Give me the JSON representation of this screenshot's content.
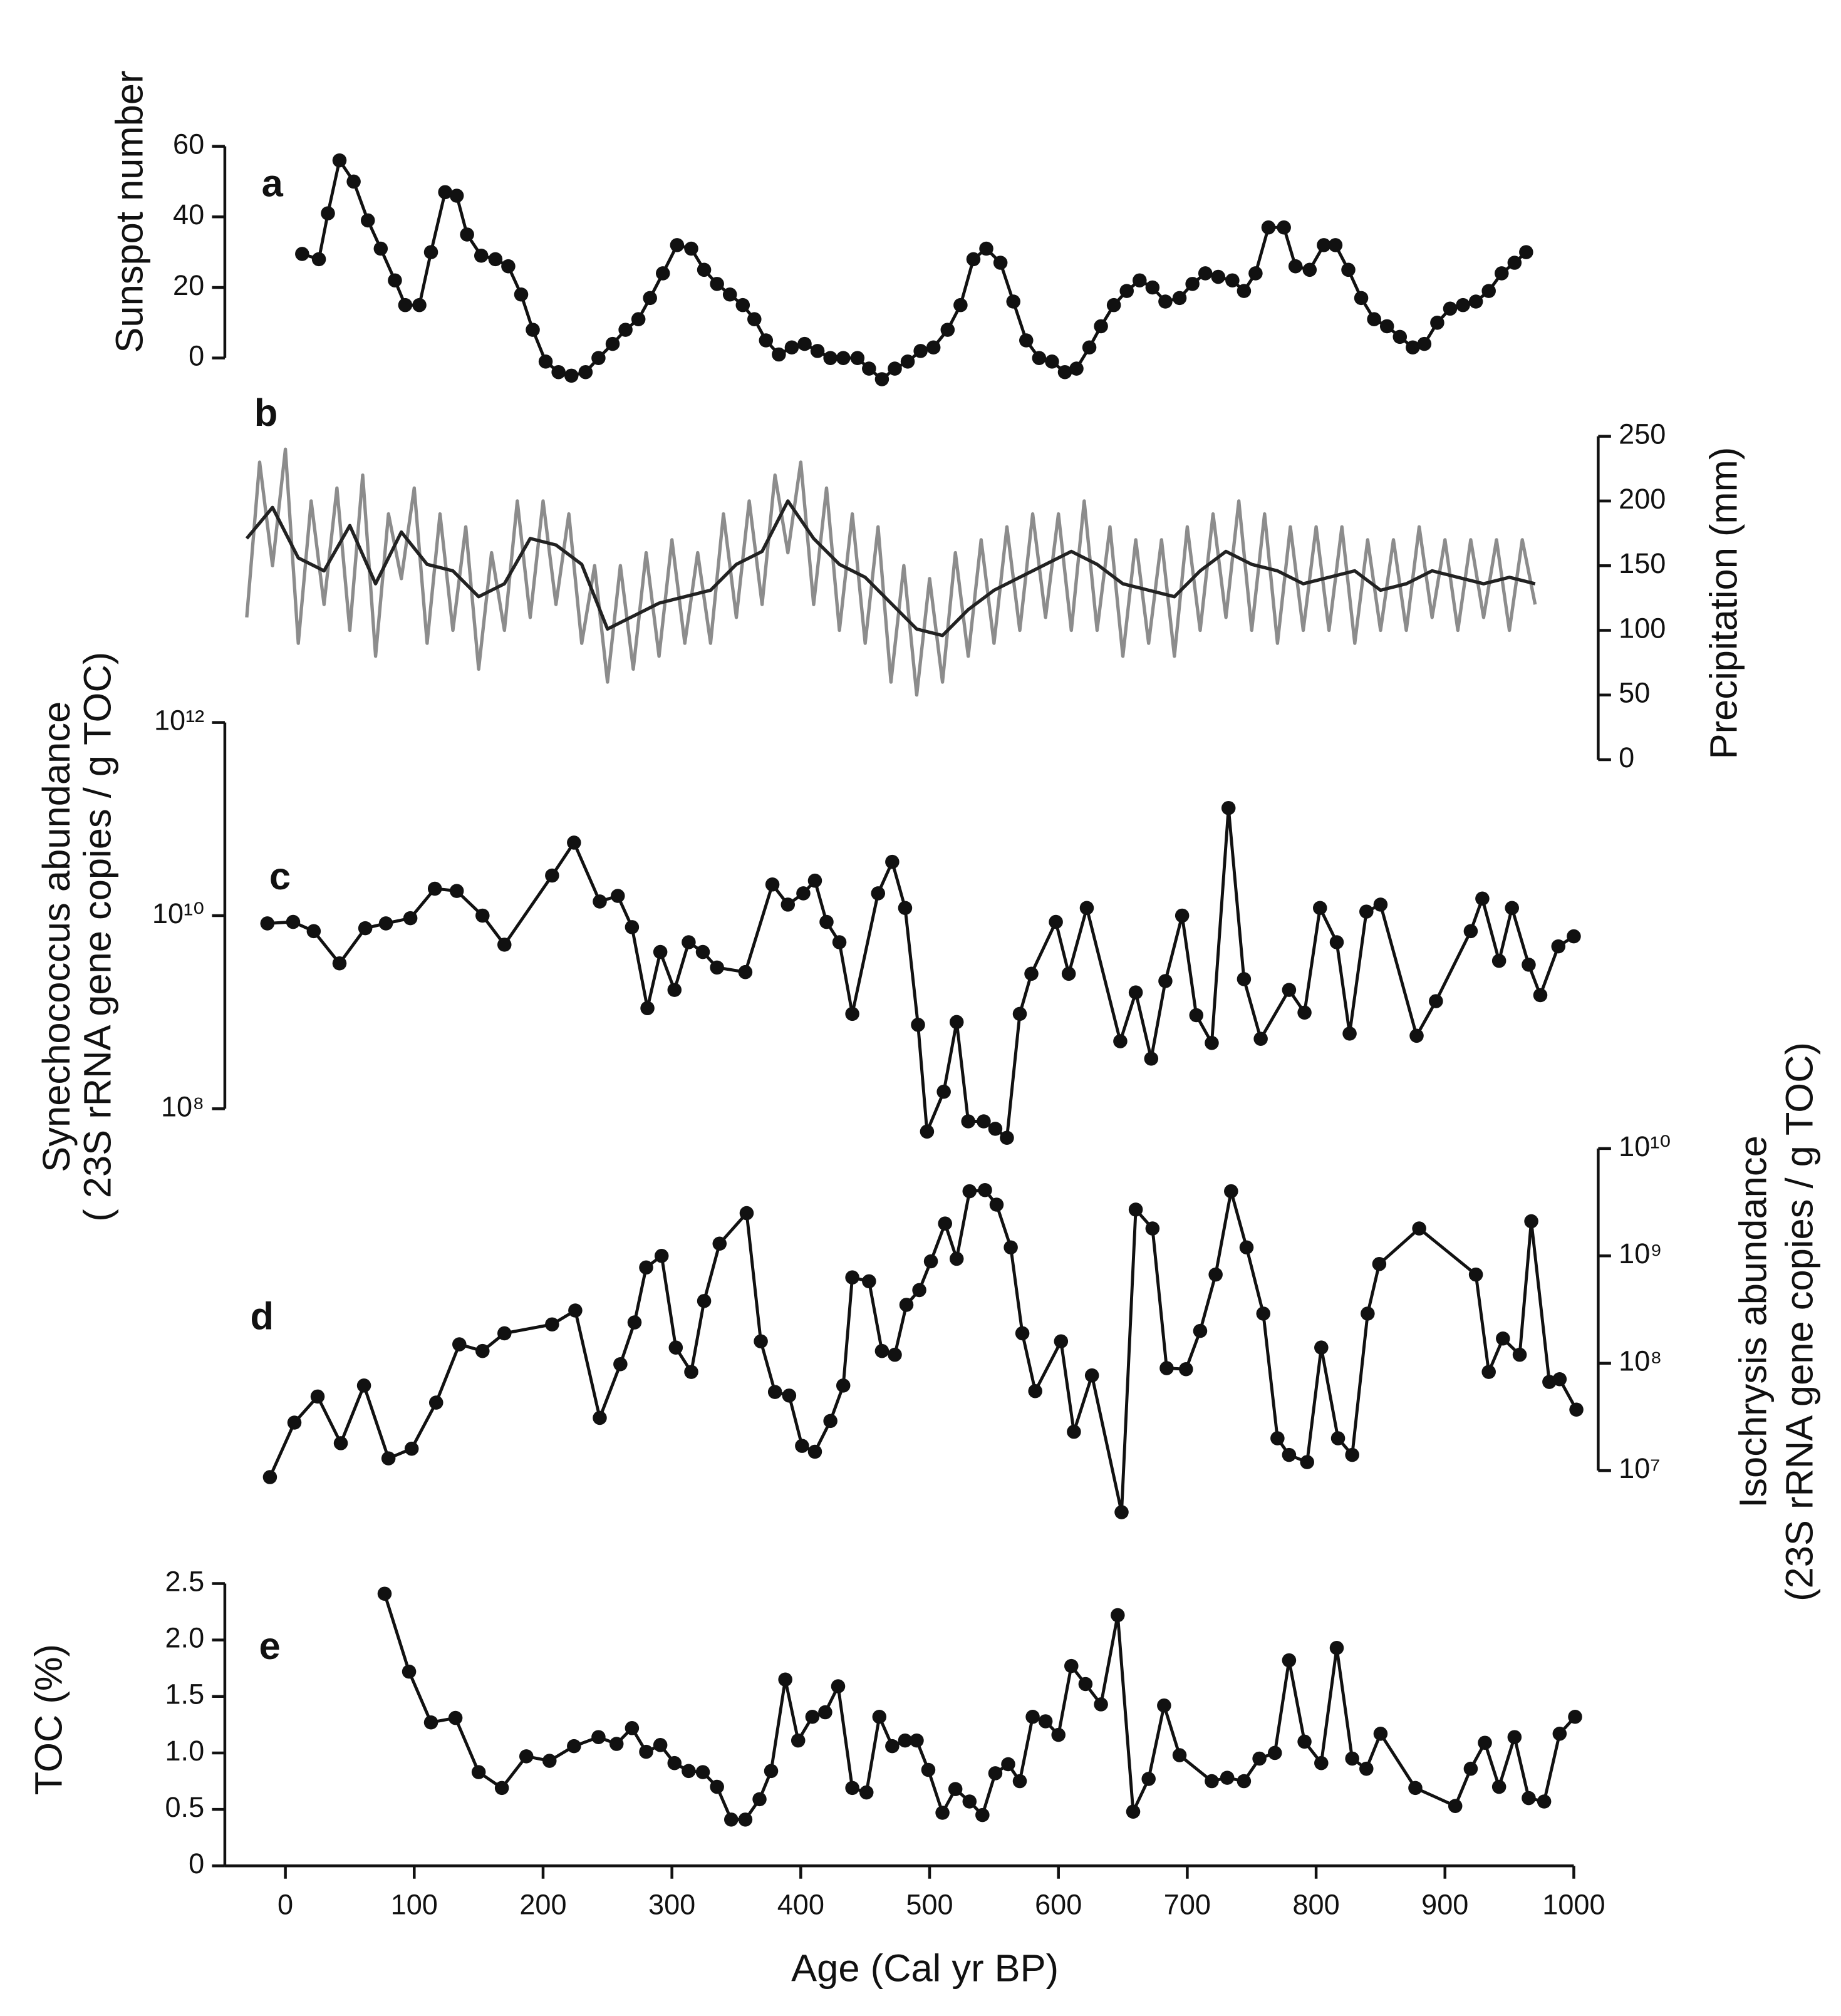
{
  "chart_data": [
    {
      "type": "line",
      "panel_label": "a",
      "ylabel": "Sunspot number",
      "ylim": [
        0,
        60
      ],
      "yticks": [
        0,
        20,
        40,
        60
      ],
      "markers": true,
      "color": "#111111",
      "x": [
        13,
        26,
        33,
        42,
        53,
        64,
        74,
        85,
        93,
        104,
        113,
        124,
        133,
        141,
        152,
        163,
        173,
        183,
        192,
        202,
        212,
        222,
        233,
        243,
        254,
        264,
        274,
        283,
        293,
        304,
        315,
        325,
        335,
        345,
        355,
        364,
        373,
        383,
        393,
        403,
        413,
        423,
        433,
        444,
        453,
        463,
        473,
        483,
        493,
        503,
        514,
        524,
        534,
        544,
        555,
        565,
        575,
        585,
        595,
        605,
        614,
        624,
        633,
        643,
        653,
        663,
        673,
        683,
        694,
        704,
        714,
        724,
        735,
        744,
        753,
        763,
        775,
        784,
        795,
        806,
        815,
        825,
        835,
        845,
        855,
        865,
        875,
        884,
        894,
        904,
        914,
        924,
        934,
        944,
        954,
        963
      ],
      "values": [
        29.5,
        28,
        41,
        56,
        50,
        39,
        31,
        22,
        15,
        15,
        30,
        47,
        46,
        35,
        29,
        28,
        26,
        18,
        8,
        -1,
        -4,
        -5,
        -4,
        0,
        4,
        8,
        11,
        17,
        24,
        32,
        31,
        25,
        21,
        18,
        15,
        11,
        5,
        1,
        3,
        4,
        2,
        0,
        0,
        0,
        -3,
        -6,
        -3,
        -1,
        2,
        3,
        8,
        15,
        28,
        31,
        27,
        16,
        5,
        0,
        -1,
        -4,
        -3,
        3,
        9,
        15,
        19,
        22,
        20,
        16,
        17,
        21,
        24,
        23,
        22,
        19,
        24,
        37,
        37,
        26,
        25,
        32,
        32,
        25,
        17,
        11,
        9,
        6,
        3,
        4,
        10,
        14,
        15,
        16,
        19,
        24,
        27,
        30
      ]
    },
    {
      "type": "line",
      "panel_label": "b",
      "ylabel": "Precipitation (mm)",
      "y_axis_side": "right",
      "ylim": [
        0,
        250
      ],
      "yticks": [
        0,
        50,
        100,
        150,
        200,
        250
      ],
      "markers": false,
      "series": [
        {
          "color": "#8c8c8c",
          "x": [
            -30,
            -20,
            -10,
            0,
            10,
            20,
            30,
            40,
            50,
            60,
            70,
            80,
            90,
            100,
            110,
            120,
            130,
            140,
            150,
            160,
            170,
            180,
            190,
            200,
            210,
            220,
            230,
            240,
            250,
            260,
            270,
            280,
            290,
            300,
            310,
            320,
            330,
            340,
            350,
            360,
            370,
            380,
            390,
            400,
            410,
            420,
            430,
            440,
            450,
            460,
            470,
            480,
            490,
            500,
            510,
            520,
            530,
            540,
            550,
            560,
            570,
            580,
            590,
            600,
            610,
            620,
            630,
            640,
            650,
            660,
            670,
            680,
            690,
            700,
            710,
            720,
            730,
            740,
            750,
            760,
            770,
            780,
            790,
            800,
            810,
            820,
            830,
            840,
            850,
            860,
            870,
            880,
            890,
            900,
            910,
            920,
            930,
            940,
            950,
            960,
            970
          ],
          "values": [
            110,
            230,
            150,
            240,
            90,
            200,
            120,
            210,
            100,
            220,
            80,
            190,
            140,
            210,
            90,
            190,
            100,
            180,
            70,
            160,
            100,
            200,
            110,
            200,
            120,
            190,
            90,
            150,
            60,
            150,
            70,
            160,
            80,
            170,
            90,
            160,
            90,
            190,
            110,
            200,
            120,
            220,
            160,
            230,
            120,
            210,
            100,
            190,
            90,
            180,
            60,
            150,
            50,
            140,
            60,
            160,
            80,
            170,
            90,
            180,
            100,
            190,
            110,
            190,
            100,
            200,
            100,
            180,
            80,
            170,
            90,
            170,
            80,
            180,
            100,
            190,
            110,
            200,
            100,
            190,
            90,
            180,
            100,
            180,
            100,
            180,
            90,
            170,
            100,
            170,
            100,
            180,
            110,
            170,
            100,
            170,
            110,
            170,
            100,
            170,
            120
          ]
        },
        {
          "color": "#222222",
          "x": [
            -30,
            -10,
            10,
            30,
            50,
            70,
            90,
            110,
            130,
            150,
            170,
            190,
            210,
            230,
            250,
            270,
            290,
            310,
            330,
            350,
            370,
            390,
            410,
            430,
            450,
            470,
            490,
            510,
            530,
            550,
            570,
            590,
            610,
            630,
            650,
            670,
            690,
            710,
            730,
            750,
            770,
            790,
            810,
            830,
            850,
            870,
            890,
            910,
            930,
            950,
            970
          ],
          "values": [
            171,
            195,
            156,
            146,
            181,
            136,
            176,
            151,
            146,
            126,
            136,
            171,
            166,
            151,
            101,
            111,
            121,
            126,
            131,
            151,
            161,
            200,
            171,
            151,
            141,
            121,
            101,
            96,
            116,
            131,
            141,
            151,
            161,
            151,
            136,
            131,
            126,
            146,
            161,
            151,
            146,
            136,
            141,
            146,
            131,
            136,
            146,
            141,
            136,
            141,
            136
          ]
        }
      ]
    },
    {
      "type": "line",
      "panel_label": "c",
      "ylabel": [
        "Synechococcus abundance",
        "( 23S rRNA gene copies / g TOC)"
      ],
      "log_scale": true,
      "ylim": [
        100000000,
        1000000000000
      ],
      "yticks": [
        {
          "value": 100000000,
          "label": "10⁸"
        },
        {
          "value": 10000000000,
          "label": "10¹⁰"
        },
        {
          "value": 1000000000000,
          "label": "10¹²"
        }
      ],
      "markers": true,
      "color": "#111111",
      "x": [
        -14,
        6,
        22,
        42,
        62,
        78,
        97,
        116,
        133,
        153,
        170,
        207,
        224,
        244,
        258,
        269,
        281,
        291,
        302,
        313,
        324,
        335,
        357,
        378,
        390,
        402,
        411,
        420,
        430,
        440,
        460,
        471,
        481,
        491,
        498,
        511,
        521,
        530,
        542,
        551,
        560,
        570,
        579,
        598,
        608,
        622,
        648,
        660,
        672,
        683,
        696,
        707,
        719,
        732,
        744,
        757,
        779,
        791,
        803,
        816,
        826,
        839,
        850,
        878,
        893,
        920,
        929,
        942,
        952,
        965,
        974,
        988,
        1000
      ],
      "values": [
        8300000000.0,
        8600000000.0,
        6900000000.0,
        3200000000.0,
        7400000000.0,
        8300000000.0,
        9400000000.0,
        19000000000.0,
        18000000000.0,
        10000000000.0,
        5000000000.0,
        26000000000.0,
        57000000000.0,
        14000000000.0,
        16000000000.0,
        7600000000.0,
        1100000000.0,
        4200000000.0,
        1700000000.0,
        5300000000.0,
        4200000000.0,
        2900000000.0,
        2600000000.0,
        21000000000.0,
        13000000000.0,
        17000000000.0,
        23000000000.0,
        8600000000.0,
        5300000000.0,
        960000000.0,
        17000000000.0,
        36000000000.0,
        12000000000.0,
        740000000.0,
        58000000.0,
        150000000.0,
        790000000.0,
        74000000.0,
        74000000.0,
        62000000.0,
        50000000.0,
        960000000.0,
        2500000000.0,
        8600000000.0,
        2500000000.0,
        12000000000.0,
        500000000.0,
        1600000000.0,
        330000000.0,
        2100000000.0,
        10000000000.0,
        930000000.0,
        480000000.0,
        130000000000.0,
        2200000000.0,
        530000000.0,
        1700000000.0,
        990000000.0,
        12000000000.0,
        5300000000.0,
        600000000.0,
        11000000000.0,
        13000000000.0,
        570000000.0,
        1300000000.0,
        6900000000.0,
        15000000000.0,
        3400000000.0,
        12000000000.0,
        3100000000.0,
        1500000000.0,
        4800000000.0,
        6100000000.0
      ]
    },
    {
      "type": "line",
      "panel_label": "d",
      "ylabel": [
        "Isochrysis abundance",
        "(23S rRNA gene copies / g TOC)"
      ],
      "y_axis_side": "right",
      "log_scale": true,
      "ylim": [
        10000000,
        10000000000
      ],
      "yticks": [
        {
          "value": 10000000,
          "label": "10⁷"
        },
        {
          "value": 100000000,
          "label": "10⁸"
        },
        {
          "value": 1000000000,
          "label": "10⁹"
        },
        {
          "value": 10000000000,
          "label": "10¹⁰"
        }
      ],
      "markers": true,
      "color": "#111111",
      "x": [
        -12,
        7,
        25,
        43,
        61,
        80,
        98,
        117,
        135,
        153,
        170,
        207,
        225,
        244,
        260,
        271,
        280,
        292,
        303,
        315,
        325,
        337,
        358,
        369,
        380,
        391,
        401,
        411,
        423,
        433,
        440,
        453,
        463,
        473,
        482,
        492,
        501,
        512,
        521,
        531,
        543,
        552,
        563,
        572,
        582,
        602,
        612,
        626,
        649,
        660,
        673,
        684,
        699,
        710,
        722,
        734,
        746,
        759,
        770,
        779,
        793,
        804,
        817,
        828,
        840,
        849,
        880,
        924,
        934,
        945,
        958,
        967,
        981,
        989,
        1002
      ],
      "values": [
        8700000.0,
        28000000.0,
        49000000.0,
        18000000.0,
        62000000.0,
        13000000.0,
        16000000.0,
        43000000.0,
        150000000.0,
        130000000.0,
        190000000.0,
        230000000.0,
        310000000.0,
        31000000.0,
        98000000.0,
        240000000.0,
        780000000.0,
        1000000000.0,
        140000000.0,
        83000000.0,
        380000000.0,
        1300000000.0,
        2500000000.0,
        160000000.0,
        54000000.0,
        50000000.0,
        17000000.0,
        15000000.0,
        29000000.0,
        62000000.0,
        630000000.0,
        580000000.0,
        130000000.0,
        120000000.0,
        350000000.0,
        480000000.0,
        890000000.0,
        2000000000.0,
        940000000.0,
        4000000000.0,
        4100000000.0,
        3000000000.0,
        1200000000.0,
        190000000.0,
        55000000.0,
        160000000.0,
        23000000.0,
        77000000.0,
        4100000.0,
        2700000000.0,
        1800000000.0,
        90000000.0,
        88000000.0,
        200000000.0,
        670000000.0,
        4000000000.0,
        1200000000.0,
        290000000.0,
        20000000.0,
        14000000.0,
        12000000.0,
        140000000.0,
        20000000.0,
        14000000.0,
        290000000.0,
        840000000.0,
        1800000000.0,
        670000000.0,
        83000000.0,
        170000000.0,
        120000000.0,
        2100000000.0,
        67000000.0,
        71000000.0,
        37000000.0
      ]
    },
    {
      "type": "line",
      "panel_label": "e",
      "ylabel": "TOC (%)",
      "xlabel": "Age (Cal yr BP)",
      "ylim": [
        0,
        2.5
      ],
      "yticks": [
        0,
        0.5,
        {
          "value": 1,
          "label": "1.0"
        },
        1.5,
        {
          "value": 2,
          "label": "2.0"
        },
        2.5
      ],
      "xlim": [
        -47,
        1000
      ],
      "xticks": [
        0,
        100,
        200,
        300,
        400,
        500,
        600,
        700,
        800,
        900,
        1000
      ],
      "markers": true,
      "color": "#111111",
      "x": [
        77,
        96,
        113,
        132,
        150,
        168,
        187,
        205,
        224,
        243,
        257,
        269,
        280,
        291,
        302,
        313,
        324,
        335,
        346,
        357,
        368,
        377,
        388,
        398,
        409,
        419,
        429,
        440,
        451,
        461,
        471,
        481,
        490,
        499,
        510,
        520,
        531,
        541,
        551,
        561,
        570,
        580,
        590,
        600,
        610,
        621,
        633,
        646,
        658,
        670,
        682,
        694,
        719,
        731,
        744,
        756,
        768,
        779,
        791,
        804,
        816,
        828,
        839,
        850,
        877,
        908,
        920,
        931,
        942,
        954,
        965,
        977,
        989,
        1001
      ],
      "values": [
        2.41,
        1.72,
        1.27,
        1.31,
        0.83,
        0.69,
        0.97,
        0.93,
        1.06,
        1.14,
        1.08,
        1.22,
        1.01,
        1.07,
        0.91,
        0.84,
        0.83,
        0.7,
        0.41,
        0.41,
        0.59,
        0.84,
        1.65,
        1.11,
        1.32,
        1.36,
        1.59,
        0.69,
        0.65,
        1.32,
        1.06,
        1.11,
        1.11,
        0.85,
        0.47,
        0.68,
        0.57,
        0.45,
        0.82,
        0.9,
        0.75,
        1.32,
        1.28,
        1.16,
        1.77,
        1.61,
        1.43,
        2.22,
        0.48,
        0.77,
        1.42,
        0.98,
        0.75,
        0.78,
        0.75,
        0.95,
        1.0,
        1.82,
        1.1,
        0.91,
        1.93,
        0.95,
        0.86,
        1.17,
        0.69,
        0.53,
        0.86,
        1.09,
        0.7,
        1.14,
        0.6,
        0.57,
        1.17,
        1.32
      ]
    }
  ]
}
